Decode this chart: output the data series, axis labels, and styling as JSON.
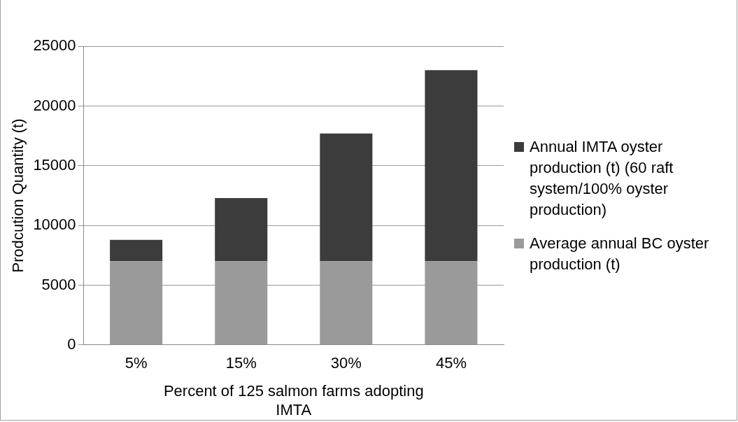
{
  "chart_data": {
    "type": "bar",
    "stacked": true,
    "categories": [
      "5%",
      "15%",
      "30%",
      "45%"
    ],
    "series": [
      {
        "name": "Average annual BC oyster production (t)",
        "color": "#9a9a9a",
        "values": [
          7000,
          7000,
          7000,
          7000
        ]
      },
      {
        "name": "Annual IMTA oyster production (t) (60 raft system/100% oyster production)",
        "color": "#3c3c3c",
        "values": [
          1800,
          5300,
          10700,
          16000
        ]
      }
    ],
    "ylabel": "Prodcution Quantity (t)",
    "xlabel": "Percent of 125 salmon farms adopting IMTA",
    "ylim": [
      0,
      25000
    ],
    "yticks": [
      0,
      5000,
      10000,
      15000,
      20000,
      25000
    ],
    "grid": "y",
    "legend": "right"
  }
}
